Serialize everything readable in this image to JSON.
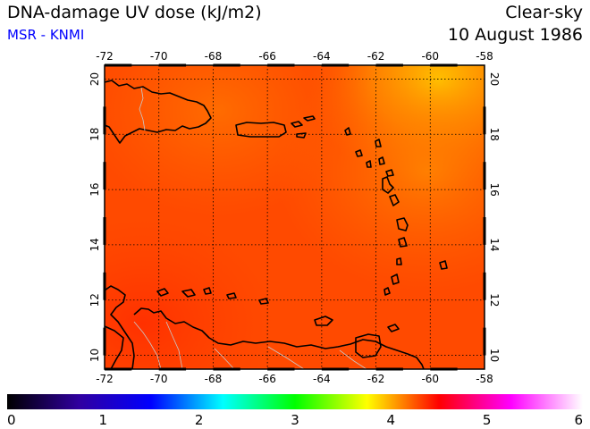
{
  "header": {
    "title": "DNA-damage UV dose (kJ/m2)",
    "source": "MSR - KNMI",
    "condition": "Clear-sky",
    "date": "10 August 1986"
  },
  "colors": {
    "source_text": "#0000ff",
    "map_fill": "#ff4a00",
    "coastline": "#000000",
    "graticule": "#000000"
  },
  "map": {
    "lon_range": [
      -72,
      -58
    ],
    "lat_range": [
      9.5,
      20.5
    ],
    "lon_ticks": [
      "-72",
      "-70",
      "-68",
      "-66",
      "-64",
      "-62",
      "-60",
      "-58"
    ],
    "lat_ticks": [
      "10",
      "12",
      "14",
      "16",
      "18",
      "20"
    ],
    "grid_lon": [
      -72,
      -70,
      -68,
      -66,
      -64,
      -62,
      -60,
      -58
    ],
    "grid_lat": [
      10,
      12,
      14,
      16,
      18,
      20
    ]
  },
  "colorbar": {
    "min": 0,
    "max": 6,
    "tick_labels": [
      "0",
      "1",
      "2",
      "3",
      "4",
      "5",
      "6"
    ],
    "stops": [
      "#000000",
      "#3000a0",
      "#0000ff",
      "#00ffff",
      "#00ff00",
      "#ffff00",
      "#ff0000",
      "#ff00ff",
      "#ffffff"
    ]
  }
}
